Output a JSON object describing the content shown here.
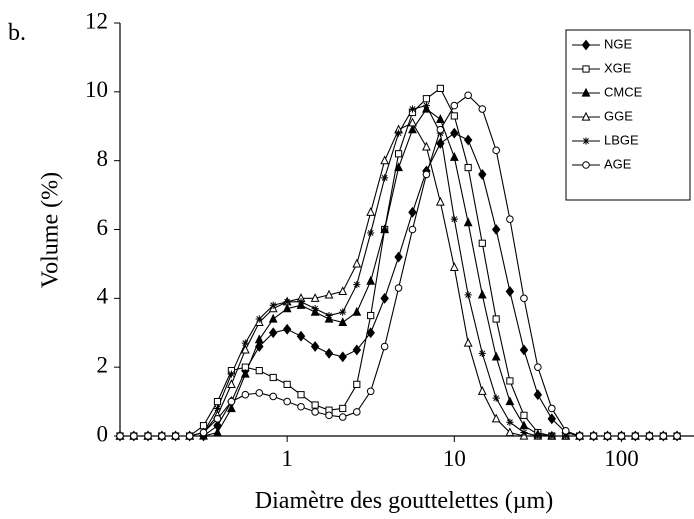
{
  "chart_data": {
    "type": "line",
    "panel_label": "b.",
    "xlabel": "Diamètre des gouttelettes (µm)",
    "ylabel": "Volume (%)",
    "xscale": "log",
    "xlim": [
      0.1,
      250
    ],
    "xticks": [
      1,
      10,
      100
    ],
    "ylim": [
      0,
      12
    ],
    "yticks": [
      0,
      2,
      4,
      6,
      8,
      10,
      12
    ],
    "grid": false,
    "legend": "upper right",
    "x": [
      0.1,
      0.121,
      0.147,
      0.178,
      0.215,
      0.261,
      0.316,
      0.383,
      0.464,
      0.562,
      0.681,
      0.825,
      1,
      1.21,
      1.47,
      1.78,
      2.15,
      2.61,
      3.16,
      3.83,
      4.64,
      5.62,
      6.81,
      8.25,
      10,
      12.1,
      14.7,
      17.8,
      21.5,
      26.1,
      31.6,
      38.3,
      46.4,
      56.2,
      68.1,
      82.5,
      100,
      121,
      147,
      178,
      215
    ],
    "series": [
      {
        "name": "NGE",
        "color": "#000000",
        "marker": "diamond-filled",
        "values": [
          0,
          0,
          0,
          0,
          0,
          0,
          0,
          0.3,
          1.0,
          1.9,
          2.6,
          3.0,
          3.1,
          2.9,
          2.6,
          2.4,
          2.3,
          2.5,
          3.0,
          4.0,
          5.2,
          6.5,
          7.7,
          8.5,
          8.8,
          8.6,
          7.6,
          6.0,
          4.2,
          2.5,
          1.2,
          0.5,
          0.1,
          0,
          0,
          0,
          0,
          0,
          0,
          0,
          0
        ]
      },
      {
        "name": "XGE",
        "color": "#000000",
        "marker": "square-open",
        "values": [
          0,
          0,
          0,
          0,
          0,
          0,
          0.3,
          1.0,
          1.9,
          2.0,
          1.9,
          1.7,
          1.5,
          1.2,
          0.9,
          0.75,
          0.8,
          1.5,
          3.5,
          6,
          8.2,
          9.4,
          9.8,
          10.1,
          9.3,
          7.8,
          5.6,
          3.4,
          1.6,
          0.6,
          0.1,
          0,
          0,
          0,
          0,
          0,
          0,
          0,
          0,
          0,
          0
        ]
      },
      {
        "name": "CMCE",
        "color": "#000000",
        "marker": "triangle-filled",
        "values": [
          0,
          0,
          0,
          0,
          0,
          0,
          0,
          0.1,
          0.8,
          1.8,
          2.8,
          3.4,
          3.7,
          3.8,
          3.6,
          3.4,
          3.3,
          3.6,
          4.5,
          6.0,
          7.8,
          8.9,
          9.5,
          9.2,
          8.1,
          6.2,
          4.1,
          2.3,
          1.0,
          0.3,
          0.05,
          0,
          0,
          0,
          0,
          0,
          0,
          0,
          0,
          0,
          0
        ]
      },
      {
        "name": "GGE",
        "color": "#000000",
        "marker": "triangle-open",
        "values": [
          0,
          0,
          0,
          0,
          0,
          0,
          0.1,
          0.6,
          1.5,
          2.5,
          3.3,
          3.7,
          3.9,
          4.0,
          4.0,
          4.1,
          4.2,
          5.0,
          6.5,
          8.0,
          8.9,
          9.1,
          8.4,
          6.8,
          4.9,
          2.7,
          1.3,
          0.5,
          0.1,
          0,
          0,
          0,
          0,
          0,
          0,
          0,
          0,
          0,
          0,
          0,
          0
        ]
      },
      {
        "name": "LBGE",
        "color": "#000000",
        "marker": "star",
        "values": [
          0,
          0,
          0,
          0,
          0,
          0,
          0.1,
          0.8,
          1.8,
          2.7,
          3.4,
          3.8,
          3.9,
          3.9,
          3.7,
          3.5,
          3.6,
          4.4,
          5.9,
          7.5,
          8.8,
          9.5,
          9.6,
          8.8,
          6.3,
          4.1,
          2.4,
          1.1,
          0.4,
          0.1,
          0,
          0,
          0,
          0,
          0,
          0,
          0,
          0,
          0,
          0,
          0
        ]
      },
      {
        "name": "AGE",
        "color": "#000000",
        "marker": "circle-open",
        "values": [
          0,
          0,
          0,
          0,
          0,
          0,
          0.1,
          0.5,
          1.0,
          1.2,
          1.25,
          1.15,
          1.0,
          0.85,
          0.7,
          0.6,
          0.55,
          0.7,
          1.3,
          2.6,
          4.3,
          6.0,
          7.6,
          8.9,
          9.6,
          9.9,
          9.5,
          8.3,
          6.3,
          4.0,
          2.0,
          0.8,
          0.15,
          0,
          0,
          0,
          0,
          0,
          0,
          0,
          0
        ]
      }
    ]
  }
}
